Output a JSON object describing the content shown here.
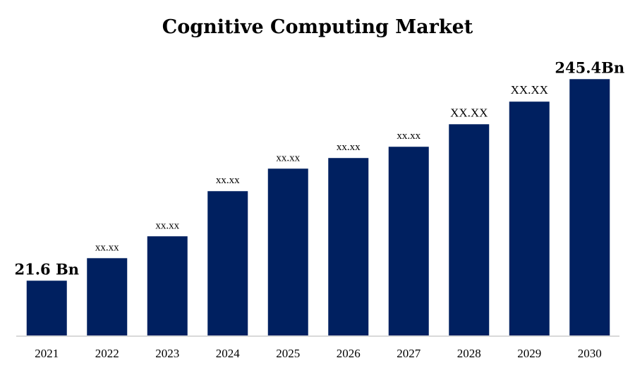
{
  "chart_data": {
    "type": "bar",
    "title": "Cognitive Computing Market",
    "xlabel": "",
    "ylabel": "",
    "categories": [
      "2021",
      "2022",
      "2023",
      "2024",
      "2025",
      "2026",
      "2027",
      "2028",
      "2029",
      "2030"
    ],
    "values": [
      21.6,
      46.6,
      70.9,
      121.0,
      146.0,
      157.8,
      170.3,
      195.3,
      220.4,
      245.4
    ],
    "data_labels": [
      "21.6 Bn",
      "xx.xx",
      "xx.xx",
      "xx.xx",
      "xx.xx",
      "xx.xx",
      "xx.xx",
      "XX.XX",
      "XX.XX",
      "245.4Bn"
    ],
    "ylim": [
      -40,
      246
    ],
    "y_axis_visible": false,
    "grid": false,
    "legend": "none",
    "bar_color": "#002060",
    "axis_color": "#d9d9d9"
  }
}
